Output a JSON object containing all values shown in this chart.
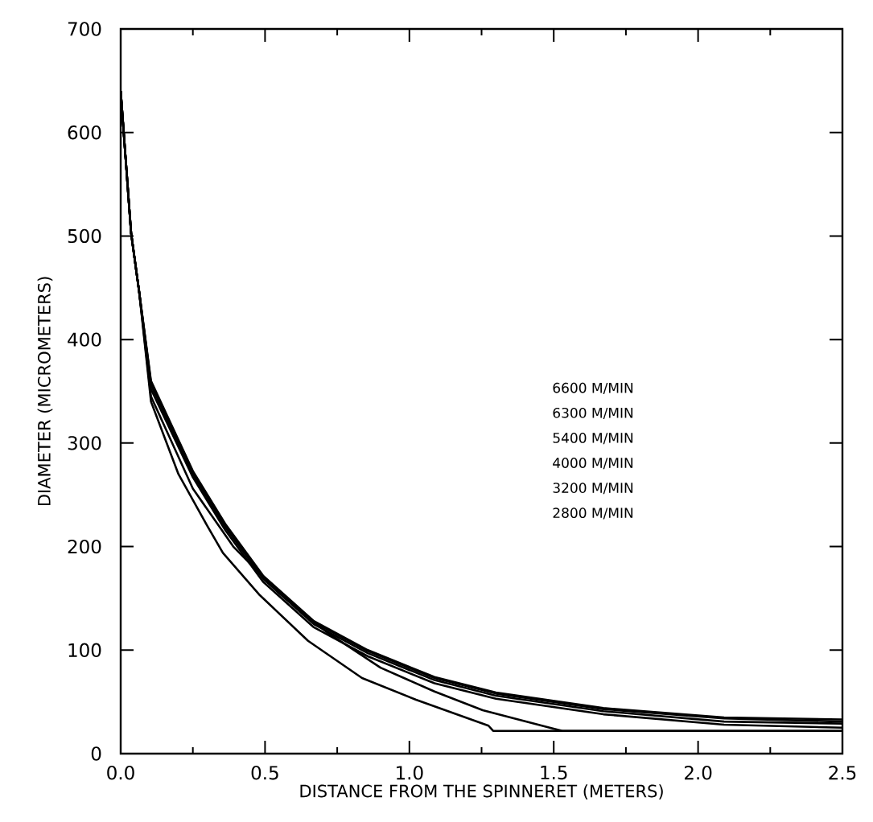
{
  "chart_data": {
    "type": "line",
    "xlabel": "DISTANCE FROM THE SPINNERET (METERS)",
    "ylabel": "DIAMETER (MICROMETERS)",
    "xlim": [
      0,
      2.5
    ],
    "ylim": [
      0,
      700
    ],
    "xticks": [
      {
        "value": 0,
        "label": "0.0"
      },
      {
        "value": 0.5,
        "label": "0.5"
      },
      {
        "value": 1,
        "label": "1.0"
      },
      {
        "value": 1.5,
        "label": "1.5"
      },
      {
        "value": 2,
        "label": "2.0"
      },
      {
        "value": 2.5,
        "label": "2.5"
      }
    ],
    "yticks": [
      0,
      100,
      200,
      300,
      400,
      500,
      600,
      700
    ],
    "annotations": [
      "6600 M/MIN",
      "6300 M/MIN",
      "5400 M/MIN",
      "4000 M/MIN",
      "3200 M/MIN",
      "2800 M/MIN"
    ],
    "series": [
      {
        "color": "#000000",
        "x": [
          0,
          0.036,
          0.064,
          0.105,
          0.25,
          0.362,
          0.493,
          0.669,
          0.856,
          1.087,
          1.3,
          1.672,
          2.09,
          2.5
        ],
        "values": [
          640,
          503,
          446,
          360,
          273,
          222,
          172,
          128,
          100,
          74,
          59,
          44,
          35,
          33
        ]
      },
      {
        "color": "#000000",
        "x": [
          0,
          0.036,
          0.064,
          0.105,
          0.25,
          0.362,
          0.493,
          0.669,
          0.856,
          1.087,
          1.3,
          1.672,
          2.09,
          2.5
        ],
        "values": [
          640,
          503,
          446,
          358,
          272,
          221,
          171,
          127,
          99,
          73,
          58,
          43,
          34,
          31
        ]
      },
      {
        "color": "#000000",
        "x": [
          0,
          0.036,
          0.064,
          0.105,
          0.25,
          0.362,
          0.493,
          0.669,
          0.856,
          1.087,
          1.3,
          1.672,
          2.09,
          2.5
        ],
        "values": [
          640,
          503,
          446,
          356,
          270,
          219,
          169,
          125,
          97,
          71,
          56,
          41,
          31,
          29
        ]
      },
      {
        "color": "#000000",
        "x": [
          0,
          0.036,
          0.064,
          0.105,
          0.25,
          0.362,
          0.493,
          0.669,
          0.856,
          1.087,
          1.3,
          1.672,
          2.09,
          2.5
        ],
        "values": [
          640,
          503,
          446,
          352,
          267,
          216,
          166,
          122,
          94,
          68,
          53,
          38,
          28,
          25
        ]
      },
      {
        "color": "#000000",
        "x": [
          0,
          0.036,
          0.064,
          0.105,
          0.25,
          0.39,
          0.549,
          0.716,
          0.9,
          1.087,
          1.254,
          1.486,
          1.53,
          2.5
        ],
        "values": [
          640,
          503,
          446,
          345,
          256,
          200,
          155,
          117,
          83,
          60,
          42,
          25,
          22,
          22
        ]
      },
      {
        "color": "#000000",
        "x": [
          0,
          0.036,
          0.064,
          0.105,
          0.2,
          0.298,
          0.354,
          0.482,
          0.649,
          0.836,
          1.023,
          1.274,
          1.29,
          2.5
        ],
        "values": [
          640,
          503,
          446,
          340,
          270,
          221,
          194,
          153,
          109,
          73,
          52,
          27,
          22,
          22
        ]
      }
    ]
  }
}
